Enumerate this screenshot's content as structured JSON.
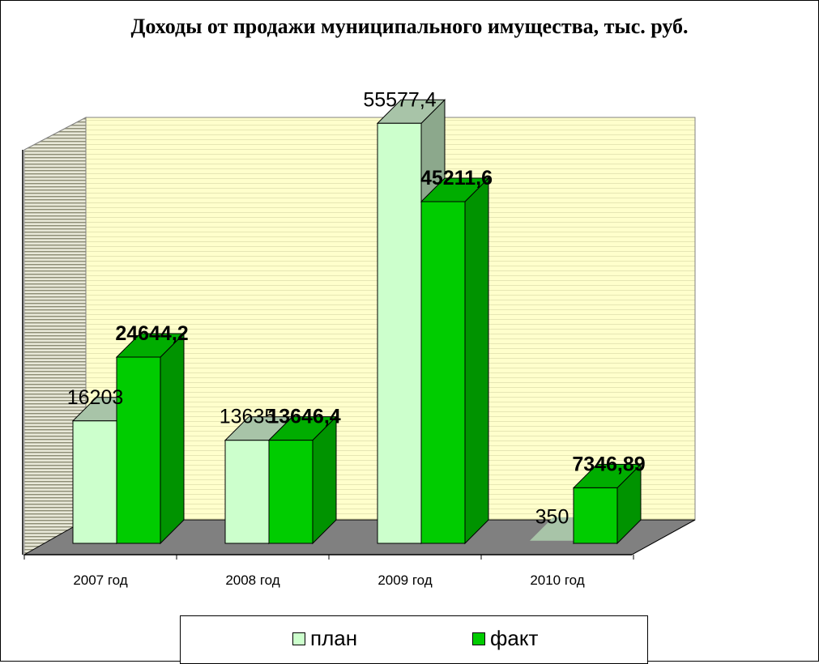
{
  "chart_data": {
    "type": "bar",
    "title": "Доходы от продажи муниципального имущества, тыс. руб.",
    "categories": [
      "2007 год",
      "2008 год",
      "2009 год",
      "2010 год"
    ],
    "series": [
      {
        "name": "план",
        "values": [
          16203,
          13635,
          55577.4,
          350
        ],
        "labels": [
          "16203",
          "13635",
          "55577,4",
          "350"
        ],
        "color": "#CCFFCC",
        "label_bold": false
      },
      {
        "name": "факт",
        "values": [
          24644.2,
          13646.4,
          45211.6,
          7346.89
        ],
        "labels": [
          "24644,2",
          "13646,4",
          "45211,6",
          "7346,89"
        ],
        "color": "#00CC00",
        "label_bold": true
      }
    ],
    "ylim": [
      0,
      60000
    ],
    "xlabel": "",
    "ylabel": "",
    "legend_position": "bottom",
    "colors": {
      "wall": "#FFFFCC",
      "wall_lines": "#E8E8B8",
      "floor": "#808080",
      "side_wall": "#D8D8C0"
    }
  }
}
